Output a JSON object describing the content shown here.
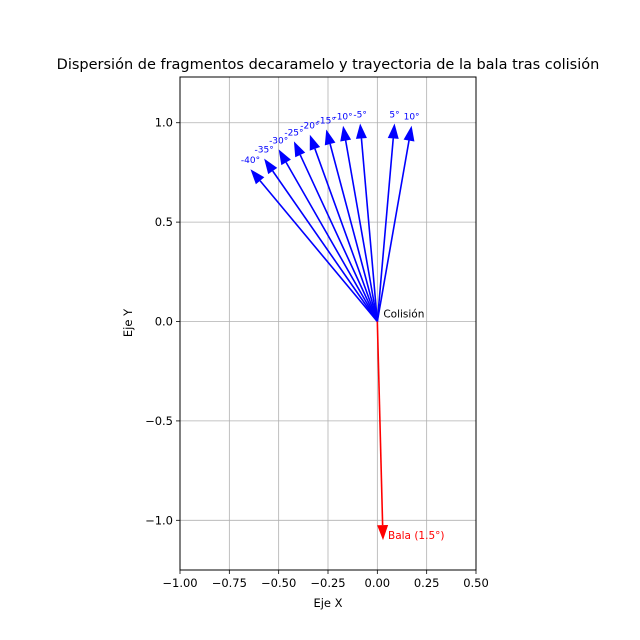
{
  "chart_data": {
    "type": "quiver",
    "title": "Dispersión de fragmentos decaramelo y trayectoria de la bala tras colisión",
    "xlabel": "Eje X",
    "ylabel": "Eje Y",
    "xlim": [
      -1.0,
      0.5
    ],
    "ylim": [
      -1.25,
      1.23
    ],
    "xticks": [
      -1.0,
      -0.75,
      -0.5,
      -0.25,
      0.0,
      0.25,
      0.5
    ],
    "xtick_labels": [
      "−1.00",
      "−0.75",
      "−0.50",
      "−0.25",
      "0.00",
      "0.25",
      "0.50"
    ],
    "yticks": [
      -1.0,
      -0.5,
      0.0,
      0.5,
      1.0
    ],
    "ytick_labels": [
      "−1.0",
      "−0.5",
      "0.0",
      "0.5",
      "1.0"
    ],
    "grid": true,
    "origin": [
      0,
      0
    ],
    "collision_label": "Colisión",
    "fragments": {
      "color": "#0000ff",
      "angles_deg": [
        -40,
        -35,
        -30,
        -25,
        -20,
        -15,
        -10,
        -5,
        5,
        10
      ],
      "labels": [
        "-40°",
        "-35°",
        "-30°",
        "-25°",
        "-20°",
        "-15°",
        "-10°",
        "-5°",
        "5°",
        "10°"
      ]
    },
    "bullet": {
      "color": "#ff0000",
      "angle_deg": 1.5,
      "label": "Bala (1.5°)"
    }
  }
}
